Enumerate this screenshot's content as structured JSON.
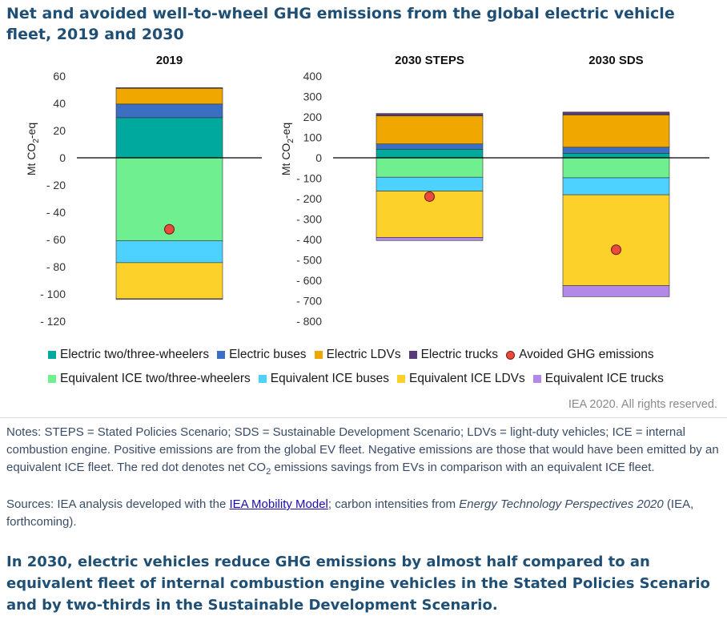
{
  "header": {
    "title": "Net and avoided well-to-wheel GHG emissions from the global electric vehicle fleet, 2019 and 2030"
  },
  "chart_data": {
    "type": "bar",
    "stacked": true,
    "ylabel_main": "Mt CO",
    "ylabel_sub": "2",
    "ylabel_suffix": "-eq",
    "colors": {
      "Electric two/three-wheelers": "#00a99d",
      "Electric buses": "#3a6fc4",
      "Electric LDVs": "#f0a800",
      "Electric trucks": "#5b3a78",
      "Equivalent ICE two/three-wheelers": "#6fef8f",
      "Equivalent ICE buses": "#4dd2ff",
      "Equivalent ICE LDVs": "#fcd12a",
      "Equivalent ICE trucks": "#b288e8",
      "Avoided GHG emissions": "#e84b3c"
    },
    "legend": {
      "row1": [
        {
          "label": "Electric two/three-wheelers",
          "kind": "square",
          "color": "#00a99d"
        },
        {
          "label": "Electric buses",
          "kind": "square",
          "color": "#3a6fc4"
        },
        {
          "label": "Electric LDVs",
          "kind": "square",
          "color": "#f0a800"
        },
        {
          "label": "Electric trucks",
          "kind": "square",
          "color": "#5b3a78"
        },
        {
          "label": "Avoided GHG emissions",
          "kind": "dot",
          "color": "#e84b3c"
        }
      ],
      "row2": [
        {
          "label": "Equivalent ICE two/three-wheelers",
          "kind": "square",
          "color": "#6fef8f"
        },
        {
          "label": "Equivalent ICE buses",
          "kind": "square",
          "color": "#4dd2ff"
        },
        {
          "label": "Equivalent ICE LDVs",
          "kind": "square",
          "color": "#fcd12a"
        },
        {
          "label": "Equivalent ICE trucks",
          "kind": "square",
          "color": "#b288e8"
        }
      ]
    },
    "panels": [
      {
        "name": "2019",
        "ylim": [
          -120,
          60
        ],
        "ticks": [
          60,
          40,
          20,
          0,
          -20,
          -40,
          -60,
          -80,
          -100,
          -120
        ],
        "tick_labels": [
          "60",
          "40",
          "20",
          "0",
          "- 20",
          "- 40",
          "- 60",
          "- 80",
          "- 100",
          "- 120"
        ],
        "bars": [
          {
            "category": "2019",
            "positive": [
              {
                "series": "Electric two/three-wheelers",
                "value": 29.5
              },
              {
                "series": "Electric buses",
                "value": 10
              },
              {
                "series": "Electric LDVs",
                "value": 11.5
              },
              {
                "series": "Electric trucks",
                "value": 0.5
              }
            ],
            "negative": [
              {
                "series": "Equivalent ICE two/three-wheelers",
                "value": -61
              },
              {
                "series": "Equivalent ICE buses",
                "value": -16
              },
              {
                "series": "Equivalent ICE LDVs",
                "value": -26.5
              },
              {
                "series": "Equivalent ICE trucks",
                "value": -0.5
              }
            ],
            "avoided": -52.5
          }
        ]
      },
      {
        "name": "2030",
        "ylim": [
          -800,
          400
        ],
        "ticks": [
          400,
          300,
          200,
          100,
          0,
          -100,
          -200,
          -300,
          -400,
          -500,
          -600,
          -700,
          -800
        ],
        "tick_labels": [
          "400",
          "300",
          "200",
          "100",
          "0",
          "- 100",
          "- 200",
          "- 300",
          "- 400",
          "- 500",
          "- 600",
          "- 700",
          "- 800"
        ],
        "bars": [
          {
            "category": "2030 STEPS",
            "positive": [
              {
                "series": "Electric two/three-wheelers",
                "value": 42
              },
              {
                "series": "Electric buses",
                "value": 26
              },
              {
                "series": "Electric LDVs",
                "value": 137
              },
              {
                "series": "Electric trucks",
                "value": 12
              }
            ],
            "negative": [
              {
                "series": "Equivalent ICE two/three-wheelers",
                "value": -95
              },
              {
                "series": "Equivalent ICE buses",
                "value": -68
              },
              {
                "series": "Equivalent ICE LDVs",
                "value": -227
              },
              {
                "series": "Equivalent ICE trucks",
                "value": -15
              }
            ],
            "avoided": -190
          },
          {
            "category": "2030 SDS",
            "positive": [
              {
                "series": "Electric two/three-wheelers",
                "value": 22
              },
              {
                "series": "Electric buses",
                "value": 30
              },
              {
                "series": "Electric LDVs",
                "value": 158
              },
              {
                "series": "Electric trucks",
                "value": 14
              }
            ],
            "negative": [
              {
                "series": "Equivalent ICE two/three-wheelers",
                "value": -98
              },
              {
                "series": "Equivalent ICE buses",
                "value": -83
              },
              {
                "series": "Equivalent ICE LDVs",
                "value": -445
              },
              {
                "series": "Equivalent ICE trucks",
                "value": -54
              }
            ],
            "avoided": -450
          }
        ]
      }
    ]
  },
  "copyright": "IEA 2020. All rights reserved.",
  "notes": {
    "part1": "Notes: STEPS = Stated Policies Scenario; SDS = Sustainable Development Scenario; LDVs = light-duty vehicles; ICE = internal combustion engine. Positive emissions are from the global EV fleet. Negative emissions are those that would have been emitted by an equivalent ICE fleet. The red dot denotes net CO",
    "sub": "2",
    "part2": " emissions savings from EVs in comparison with an equivalent ICE fleet."
  },
  "sources": {
    "prefix": "Sources: IEA analysis developed with the ",
    "link_text": "IEA Mobility Model",
    "middle": "; carbon intensities from ",
    "italic": "Energy Technology Perspectives 2020",
    "suffix": " (IEA, forthcoming)."
  },
  "summary": "In 2030, electric vehicles reduce GHG emissions by almost half compared to an equivalent fleet of internal combustion engine vehicles in the Stated Policies Scenario and by two-thirds in the Sustainable Development Scenario."
}
